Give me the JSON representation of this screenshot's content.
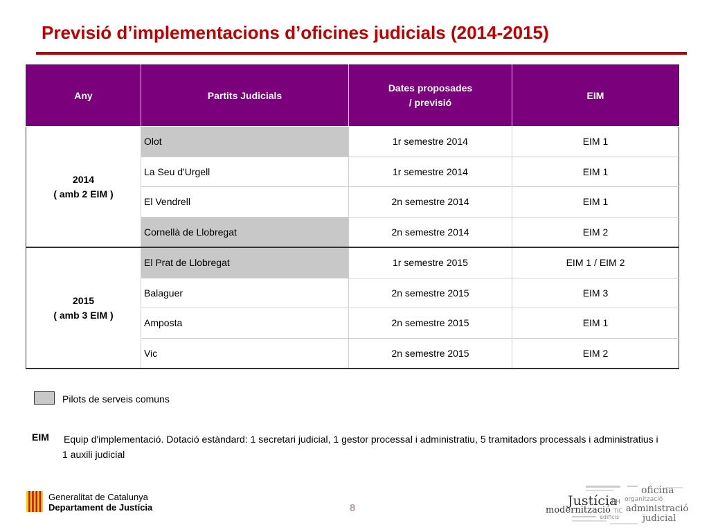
{
  "title": "Previsió d’implementacions d’oficines judicials (2014-2015)",
  "colors": {
    "title": "#c00000",
    "header": "#7b007b",
    "pilot": "#c8c8c8"
  },
  "table": {
    "headers": [
      "Any",
      "Partits Judicials",
      "Dates proposades / previsió",
      "EIM"
    ],
    "header_dates_line1": "Dates proposades",
    "header_dates_line2": "/ previsió",
    "groups": [
      {
        "year": "2014",
        "year_note": "( amb 2 EIM )",
        "rows": [
          {
            "partit": "Olot",
            "date": "1r semestre 2014",
            "eim": "EIM 1",
            "pilot": true
          },
          {
            "partit": "La Seu d'Urgell",
            "date": "1r semestre 2014",
            "eim": "EIM 1",
            "pilot": false
          },
          {
            "partit": "El Vendrell",
            "date": "2n semestre 2014",
            "eim": "EIM 1",
            "pilot": false
          },
          {
            "partit": "Cornellà de Llobregat",
            "date": "2n semestre 2014",
            "eim": "EIM 2",
            "pilot": true
          }
        ]
      },
      {
        "year": "2015",
        "year_note": "( amb 3 EIM )",
        "rows": [
          {
            "partit": "El Prat de Llobregat",
            "date": "1r semestre 2015",
            "eim": "EIM 1 / EIM 2",
            "pilot": true
          },
          {
            "partit": "Balaguer",
            "date": "2n semestre 2015",
            "eim": "EIM 3",
            "pilot": false
          },
          {
            "partit": "Amposta",
            "date": "2n semestre 2015",
            "eim": "EIM 1",
            "pilot": false
          },
          {
            "partit": "Vic",
            "date": "2n semestre 2015",
            "eim": "EIM 2",
            "pilot": false
          }
        ]
      }
    ]
  },
  "legend": {
    "pilot_label": "Pilots de serveis comuns"
  },
  "eim_note": {
    "key": "EIM",
    "text": "Equip d'implementació. Dotació estàndard: 1 secretari judicial, 1 gestor processal i administratiu, 5 tramitadors processals i administratius i 1 auxili judicial"
  },
  "footer": {
    "org_line1": "Generalitat de Catalunya",
    "org_line2": "Departament de Justícia",
    "page_number": "8",
    "logo_icon": "senyera-logo-icon",
    "cloud_words": [
      "oficina",
      "Justícia",
      "organització",
      "modernització",
      "administració",
      "judicial",
      "RH",
      "TIC",
      "edificis"
    ]
  }
}
